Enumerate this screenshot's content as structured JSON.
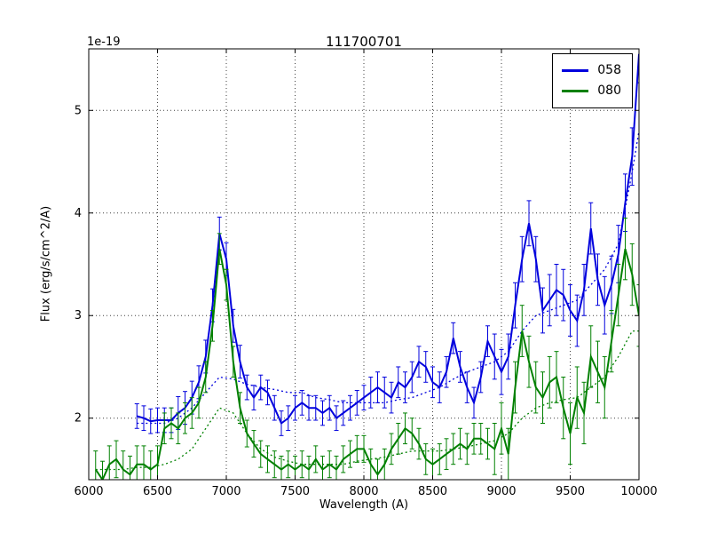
{
  "chart_data": {
    "type": "line",
    "title": "111700701",
    "xlabel": "Wavelength (A)",
    "ylabel": "Flux (erg/s/cm^2/A)",
    "offset_label": "1e-19",
    "xlim": [
      6000,
      10000
    ],
    "ylim": [
      1.4,
      5.6
    ],
    "x_ticks": [
      6000,
      6500,
      7000,
      7500,
      8000,
      8500,
      9000,
      9500,
      10000
    ],
    "y_ticks": [
      2,
      3,
      4,
      5
    ],
    "grid": true,
    "background": "#ffffff",
    "legend": {
      "position": "upper right",
      "entries": [
        {
          "label": "058",
          "color": "#0000dd"
        },
        {
          "label": "080",
          "color": "#008000"
        }
      ]
    },
    "series": [
      {
        "name": "058",
        "style": "solid",
        "color": "#0000dd",
        "x": [
          6350,
          6400,
          6450,
          6500,
          6550,
          6600,
          6650,
          6700,
          6750,
          6800,
          6850,
          6900,
          6950,
          7000,
          7050,
          7100,
          7150,
          7200,
          7250,
          7300,
          7350,
          7400,
          7450,
          7500,
          7550,
          7600,
          7650,
          7700,
          7750,
          7800,
          7850,
          7900,
          7950,
          8000,
          8050,
          8100,
          8150,
          8200,
          8250,
          8300,
          8350,
          8400,
          8450,
          8500,
          8550,
          8600,
          8650,
          8700,
          8750,
          8800,
          8850,
          8900,
          8950,
          9000,
          9050,
          9100,
          9150,
          9200,
          9250,
          9300,
          9350,
          9400,
          9450,
          9500,
          9550,
          9600,
          9650,
          9700,
          9750,
          9800,
          9850,
          9900,
          9950,
          10000
        ],
        "y": [
          2.02,
          2.0,
          1.97,
          1.98,
          1.98,
          1.98,
          2.05,
          2.1,
          2.2,
          2.35,
          2.6,
          3.1,
          3.8,
          3.55,
          2.9,
          2.55,
          2.3,
          2.2,
          2.3,
          2.25,
          2.1,
          1.95,
          2.0,
          2.1,
          2.15,
          2.1,
          2.1,
          2.05,
          2.1,
          2.0,
          2.05,
          2.1,
          2.15,
          2.2,
          2.25,
          2.3,
          2.25,
          2.2,
          2.35,
          2.3,
          2.4,
          2.55,
          2.5,
          2.35,
          2.3,
          2.45,
          2.78,
          2.5,
          2.3,
          2.15,
          2.4,
          2.75,
          2.6,
          2.45,
          2.6,
          3.1,
          3.55,
          3.9,
          3.55,
          3.05,
          3.15,
          3.25,
          3.2,
          3.05,
          2.95,
          3.25,
          3.85,
          3.35,
          3.1,
          3.3,
          3.6,
          4.1,
          4.55,
          5.55
        ],
        "yerr": [
          0.12,
          0.12,
          0.12,
          0.12,
          0.12,
          0.12,
          0.16,
          0.16,
          0.16,
          0.16,
          0.16,
          0.16,
          0.16,
          0.16,
          0.16,
          0.16,
          0.12,
          0.12,
          0.12,
          0.12,
          0.12,
          0.12,
          0.12,
          0.12,
          0.12,
          0.12,
          0.12,
          0.12,
          0.12,
          0.12,
          0.12,
          0.12,
          0.12,
          0.12,
          0.15,
          0.15,
          0.15,
          0.15,
          0.15,
          0.15,
          0.15,
          0.15,
          0.15,
          0.15,
          0.15,
          0.15,
          0.15,
          0.15,
          0.15,
          0.15,
          0.15,
          0.15,
          0.22,
          0.22,
          0.22,
          0.22,
          0.22,
          0.22,
          0.22,
          0.22,
          0.25,
          0.25,
          0.25,
          0.25,
          0.25,
          0.25,
          0.25,
          0.25,
          0.28,
          0.28,
          0.28,
          0.28,
          0.28,
          0.28
        ]
      },
      {
        "name": "080",
        "style": "solid",
        "color": "#008000",
        "x": [
          6050,
          6100,
          6150,
          6200,
          6250,
          6300,
          6350,
          6400,
          6450,
          6500,
          6550,
          6600,
          6650,
          6700,
          6750,
          6800,
          6850,
          6900,
          6950,
          7000,
          7050,
          7100,
          7150,
          7200,
          7250,
          7300,
          7350,
          7400,
          7450,
          7500,
          7550,
          7600,
          7650,
          7700,
          7750,
          7800,
          7850,
          7900,
          7950,
          8000,
          8050,
          8100,
          8150,
          8200,
          8250,
          8300,
          8350,
          8400,
          8450,
          8500,
          8550,
          8600,
          8650,
          8700,
          8750,
          8800,
          8850,
          8900,
          8950,
          9000,
          9050,
          9100,
          9150,
          9200,
          9250,
          9300,
          9350,
          9400,
          9450,
          9500,
          9550,
          9600,
          9650,
          9700,
          9750,
          9800,
          9850,
          9900,
          9950,
          10000
        ],
        "y": [
          1.5,
          1.4,
          1.55,
          1.6,
          1.5,
          1.45,
          1.55,
          1.55,
          1.5,
          1.55,
          1.9,
          1.95,
          1.9,
          2.0,
          2.05,
          2.15,
          2.4,
          2.9,
          3.65,
          3.3,
          2.55,
          2.1,
          1.85,
          1.75,
          1.65,
          1.6,
          1.55,
          1.5,
          1.55,
          1.5,
          1.55,
          1.5,
          1.6,
          1.5,
          1.55,
          1.5,
          1.6,
          1.65,
          1.7,
          1.7,
          1.55,
          1.45,
          1.55,
          1.7,
          1.8,
          1.9,
          1.85,
          1.75,
          1.6,
          1.55,
          1.6,
          1.65,
          1.7,
          1.75,
          1.7,
          1.8,
          1.8,
          1.75,
          1.7,
          1.9,
          1.65,
          2.3,
          2.85,
          2.55,
          2.3,
          2.2,
          2.35,
          2.4,
          2.1,
          1.85,
          2.2,
          2.05,
          2.6,
          2.45,
          2.3,
          2.75,
          3.2,
          3.65,
          3.4,
          3.0
        ],
        "yerr": [
          0.18,
          0.18,
          0.18,
          0.18,
          0.18,
          0.18,
          0.18,
          0.18,
          0.18,
          0.18,
          0.15,
          0.15,
          0.15,
          0.15,
          0.15,
          0.15,
          0.15,
          0.15,
          0.15,
          0.15,
          0.15,
          0.15,
          0.13,
          0.13,
          0.13,
          0.13,
          0.13,
          0.13,
          0.13,
          0.13,
          0.13,
          0.13,
          0.13,
          0.13,
          0.13,
          0.13,
          0.13,
          0.13,
          0.13,
          0.13,
          0.15,
          0.15,
          0.15,
          0.15,
          0.15,
          0.15,
          0.15,
          0.15,
          0.15,
          0.15,
          0.15,
          0.15,
          0.15,
          0.15,
          0.15,
          0.15,
          0.15,
          0.15,
          0.25,
          0.25,
          0.25,
          0.25,
          0.25,
          0.25,
          0.25,
          0.25,
          0.25,
          0.25,
          0.3,
          0.3,
          0.3,
          0.3,
          0.3,
          0.3,
          0.3,
          0.3,
          0.3,
          0.3,
          0.3,
          0.3
        ]
      },
      {
        "name": "058 smooth",
        "style": "dotted",
        "color": "#0000dd",
        "x": [
          6350,
          6450,
          6550,
          6650,
          6750,
          6850,
          6950,
          7050,
          7150,
          7250,
          7350,
          7450,
          7550,
          7650,
          7750,
          7850,
          7950,
          8050,
          8150,
          8250,
          8350,
          8450,
          8550,
          8650,
          8750,
          8850,
          8950,
          9050,
          9150,
          9250,
          9350,
          9450,
          9550,
          9650,
          9750,
          9850,
          9950,
          10000
        ],
        "y": [
          1.95,
          1.95,
          1.95,
          2.0,
          2.1,
          2.25,
          2.4,
          2.38,
          2.33,
          2.3,
          2.28,
          2.25,
          2.25,
          2.2,
          2.18,
          2.15,
          2.15,
          2.15,
          2.15,
          2.18,
          2.2,
          2.25,
          2.3,
          2.38,
          2.45,
          2.5,
          2.55,
          2.65,
          2.85,
          3.0,
          3.05,
          3.1,
          3.15,
          3.3,
          3.45,
          3.7,
          4.4,
          4.8
        ]
      },
      {
        "name": "080 smooth",
        "style": "dotted",
        "color": "#008000",
        "x": [
          6050,
          6150,
          6250,
          6350,
          6450,
          6550,
          6650,
          6750,
          6850,
          6950,
          7050,
          7150,
          7250,
          7350,
          7450,
          7550,
          7650,
          7750,
          7850,
          7950,
          8050,
          8150,
          8250,
          8350,
          8450,
          8550,
          8650,
          8750,
          8850,
          8950,
          9050,
          9150,
          9250,
          9350,
          9450,
          9550,
          9650,
          9750,
          9850,
          9950,
          10000
        ],
        "y": [
          1.5,
          1.5,
          1.5,
          1.52,
          1.52,
          1.55,
          1.6,
          1.7,
          1.9,
          2.1,
          2.05,
          1.85,
          1.7,
          1.62,
          1.58,
          1.55,
          1.55,
          1.55,
          1.55,
          1.58,
          1.6,
          1.62,
          1.65,
          1.68,
          1.68,
          1.68,
          1.7,
          1.72,
          1.75,
          1.78,
          1.85,
          2.0,
          2.1,
          2.15,
          2.18,
          2.2,
          2.3,
          2.4,
          2.6,
          2.85,
          2.85
        ]
      }
    ]
  }
}
